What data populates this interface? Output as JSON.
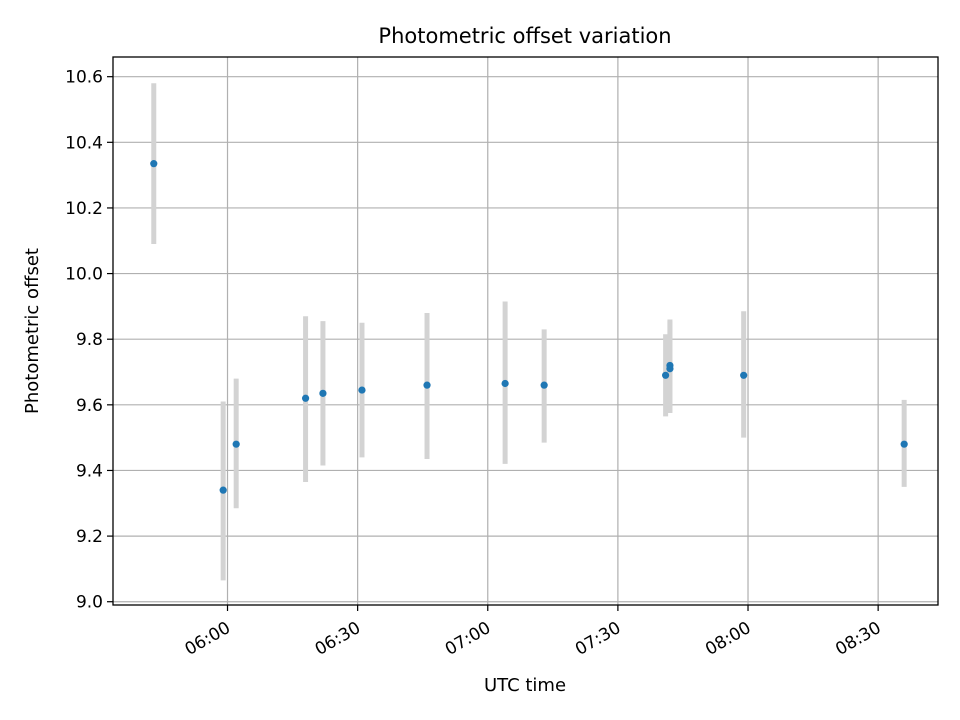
{
  "chart_data": {
    "type": "scatter",
    "title": "Photometric offset variation",
    "xlabel": "UTC time",
    "ylabel": "Photometric offset",
    "x_ticks": [
      "06:00",
      "06:30",
      "07:00",
      "07:30",
      "08:00",
      "08:30"
    ],
    "x_tick_minutes": [
      360,
      390,
      420,
      450,
      480,
      510
    ],
    "xlim_minutes": [
      333.6,
      523.8
    ],
    "y_ticks": [
      "9.0",
      "9.2",
      "9.4",
      "9.6",
      "9.8",
      "10.0",
      "10.2",
      "10.4",
      "10.6"
    ],
    "y_tick_values": [
      9.0,
      9.2,
      9.4,
      9.6,
      9.8,
      10.0,
      10.2,
      10.4,
      10.6
    ],
    "ylim": [
      8.99,
      10.66
    ],
    "grid": true,
    "colors": {
      "points": "#1f77b4",
      "errorbars": "#d3d3d3",
      "grid": "#b0b0b0"
    },
    "points": [
      {
        "time": "05:43",
        "y": 10.335,
        "ylow": 10.09,
        "yhigh": 10.58
      },
      {
        "time": "05:59",
        "y": 9.34,
        "ylow": 9.065,
        "yhigh": 9.61
      },
      {
        "time": "06:02",
        "y": 9.48,
        "ylow": 9.285,
        "yhigh": 9.68
      },
      {
        "time": "06:18",
        "y": 9.62,
        "ylow": 9.365,
        "yhigh": 9.87
      },
      {
        "time": "06:22",
        "y": 9.635,
        "ylow": 9.415,
        "yhigh": 9.855
      },
      {
        "time": "06:31",
        "y": 9.645,
        "ylow": 9.44,
        "yhigh": 9.85
      },
      {
        "time": "06:46",
        "y": 9.66,
        "ylow": 9.435,
        "yhigh": 9.88
      },
      {
        "time": "07:04",
        "y": 9.665,
        "ylow": 9.42,
        "yhigh": 9.915
      },
      {
        "time": "07:13",
        "y": 9.66,
        "ylow": 9.485,
        "yhigh": 9.83
      },
      {
        "time": "07:41",
        "y": 9.69,
        "ylow": 9.565,
        "yhigh": 9.815
      },
      {
        "time": "07:42",
        "y": 9.72,
        "ylow": 9.58,
        "yhigh": 9.86
      },
      {
        "time": "07:42",
        "y": 9.71,
        "ylow": 9.575,
        "yhigh": 9.855
      },
      {
        "time": "07:59",
        "y": 9.69,
        "ylow": 9.5,
        "yhigh": 9.885
      },
      {
        "time": "08:36",
        "y": 9.48,
        "ylow": 9.35,
        "yhigh": 9.615
      }
    ]
  }
}
